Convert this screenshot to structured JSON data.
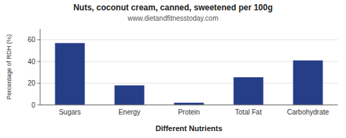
{
  "chart_data": {
    "type": "bar",
    "title": "Nuts, coconut cream, canned, sweetened per 100g",
    "subtitle": "www.dietandfitnesstoday.com",
    "xlabel": "Different Nutrients",
    "ylabel": "Percentage of RDH (%)",
    "categories": [
      "Sugars",
      "Energy",
      "Protein",
      "Total Fat",
      "Carbohydrate"
    ],
    "values": [
      57,
      18,
      2,
      25.5,
      41
    ],
    "color": "#263d87",
    "ylim": [
      0,
      70
    ],
    "yticks": [
      0,
      20,
      40,
      60
    ],
    "grid": true
  }
}
